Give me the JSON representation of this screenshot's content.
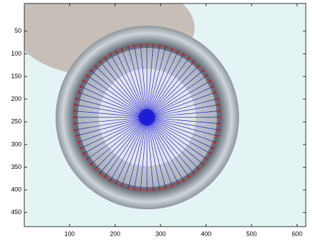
{
  "chart_data": {
    "type": "scatter",
    "xlim": [
      0.5,
      619
    ],
    "ylim": [
      -11,
      481
    ],
    "y_reversed": true,
    "xticks": [
      100,
      200,
      300,
      400,
      500,
      600
    ],
    "yticks": [
      50,
      100,
      150,
      200,
      250,
      300,
      350,
      400,
      450
    ],
    "center": [
      270,
      240
    ],
    "ray_color": "#1c1cd6",
    "series": [
      {
        "color": "#e3161e",
        "x": [
          430,
          429,
          428,
          425,
          420,
          415,
          409,
          401,
          393,
          383,
          373,
          362,
          350,
          338,
          325,
          311,
          298,
          284,
          270,
          256,
          242,
          229,
          215,
          202,
          190,
          178,
          167,
          157,
          147,
          139,
          131,
          125,
          120,
          115,
          112,
          111,
          110,
          111,
          112,
          115,
          120,
          125,
          131,
          139,
          147,
          157,
          167,
          178,
          190,
          202,
          215,
          229,
          242,
          256,
          270,
          284,
          298,
          311,
          325,
          338,
          350,
          362,
          373,
          383,
          393,
          401,
          409,
          415,
          420,
          425,
          428,
          429
        ],
        "y": [
          240,
          254,
          268,
          281,
          295,
          308,
          320,
          332,
          343,
          353,
          363,
          371,
          379,
          385,
          390,
          395,
          398,
          399,
          400,
          399,
          398,
          395,
          390,
          385,
          379,
          371,
          363,
          353,
          343,
          332,
          320,
          308,
          295,
          281,
          268,
          254,
          240,
          226,
          212,
          199,
          185,
          172,
          160,
          148,
          137,
          127,
          117,
          109,
          101,
          95,
          90,
          85,
          82,
          81,
          80,
          81,
          82,
          85,
          90,
          95,
          101,
          109,
          117,
          127,
          137,
          148,
          160,
          172,
          185,
          199,
          212,
          226
        ]
      }
    ]
  }
}
